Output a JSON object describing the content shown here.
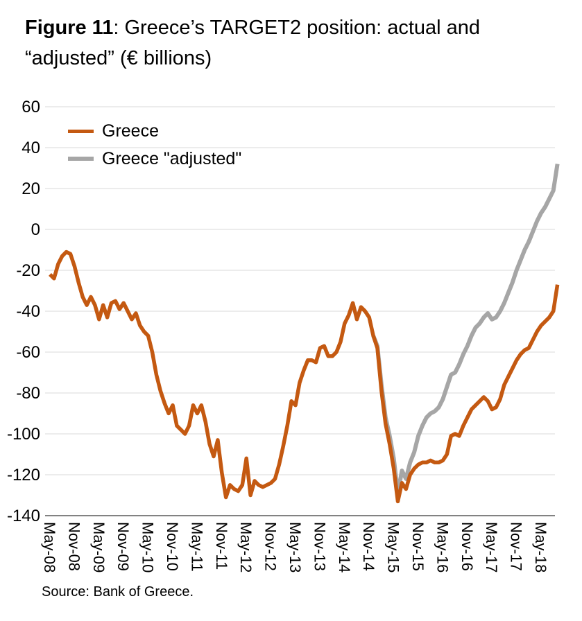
{
  "figure": {
    "title": {
      "prefix": "Figure 11",
      "rest_line1": ": Greece’s TARGET2 position: actual and",
      "line2": "“adjusted” (€ billions)"
    },
    "source_note": "Source: Bank of Greece."
  },
  "colors": {
    "greece_actual": "#C45911",
    "greece_adjusted": "#A6A6A6",
    "gridline": "#D9D9D9",
    "axis_line": "#595959",
    "text": "#000000",
    "background": "#FFFFFF"
  },
  "chart_data": {
    "type": "line",
    "title": "Figure 11: Greece’s TARGET2 position: actual and “adjusted” (€ billions)",
    "xlabel": "",
    "ylabel": "€ billions",
    "ylim": [
      -140,
      60
    ],
    "ytick_step": 20,
    "grid": true,
    "legend_position": "top-left",
    "x_unit": "month",
    "x_first_month": "May-08",
    "x_last_month": "Sep-18",
    "x_tick_every_months": 6,
    "x_tick_labels": [
      "May-08",
      "Nov-08",
      "May-09",
      "Nov-09",
      "May-10",
      "Nov-10",
      "May-11",
      "Nov-11",
      "May-12",
      "Nov-12",
      "May-13",
      "Nov-13",
      "May-14",
      "Nov-14",
      "May-15",
      "Nov-15",
      "May-16",
      "Nov-16",
      "May-17",
      "Nov-17",
      "May-18"
    ],
    "series": [
      {
        "name": "Greece",
        "color": "#C45911",
        "stroke_width": 5.5,
        "start_month": "May-08",
        "start_index": 0,
        "values": [
          -22,
          -24,
          -17,
          -13,
          -11,
          -12,
          -18,
          -26,
          -33,
          -37,
          -33,
          -37,
          -44,
          -37,
          -43,
          -36,
          -35,
          -39,
          -36,
          -40,
          -44,
          -41,
          -47,
          -50,
          -52,
          -60,
          -71,
          -79,
          -85,
          -90,
          -86,
          -96,
          -98,
          -100,
          -96,
          -86,
          -90,
          -86,
          -94,
          -105,
          -111,
          -103,
          -119,
          -131,
          -125,
          -127,
          -128,
          -125,
          -112,
          -130,
          -123,
          -125,
          -126,
          -125,
          -124,
          -122,
          -115,
          -106,
          -96,
          -84,
          -86,
          -75,
          -69,
          -64,
          -64,
          -65,
          -58,
          -57,
          -62,
          -62,
          -60,
          -55,
          -46,
          -42,
          -36,
          -44,
          -38,
          -40,
          -43,
          -52,
          -58,
          -79,
          -95,
          -105,
          -117,
          -133,
          -124,
          -127,
          -120,
          -117,
          -115,
          -114,
          -114,
          -113,
          -114,
          -114,
          -113,
          -110,
          -101,
          -100,
          -101,
          -96,
          -92,
          -88,
          -86,
          -84,
          -82,
          -84,
          -88,
          -87,
          -83,
          -76,
          -72,
          -68,
          -64,
          -61,
          -59,
          -58,
          -54,
          -50,
          -47,
          -45,
          -43,
          -40,
          -27
        ]
      },
      {
        "name": "Greece \"adjusted\"",
        "color": "#A6A6A6",
        "stroke_width": 6,
        "start_month": "Dec-14",
        "start_index": 79,
        "values": [
          -52,
          -57,
          -76,
          -92,
          -101,
          -112,
          -129,
          -118,
          -122,
          -114,
          -109,
          -101,
          -96,
          -92,
          -90,
          -89,
          -87,
          -83,
          -77,
          -71,
          -70,
          -66,
          -61,
          -57,
          -52,
          -48,
          -46,
          -43,
          -41,
          -44,
          -43,
          -40,
          -36,
          -31,
          -26,
          -20,
          -15,
          -10,
          -6,
          -1,
          4,
          8,
          11,
          15,
          19,
          32
        ]
      }
    ]
  }
}
